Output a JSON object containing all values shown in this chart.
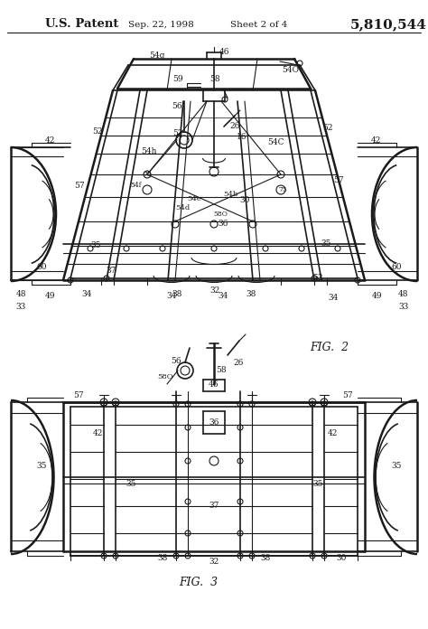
{
  "title_left": "U.S. Patent",
  "title_date": "Sep. 22, 1998",
  "title_sheet": "Sheet 2 of 4",
  "title_number": "5,810,544",
  "fig2_label": "FIG.  2",
  "fig3_label": "FIG.  3",
  "bg_color": "#ffffff",
  "line_color": "#1a1a1a",
  "fig_width": 4.74,
  "fig_height": 6.96,
  "dpi": 100
}
